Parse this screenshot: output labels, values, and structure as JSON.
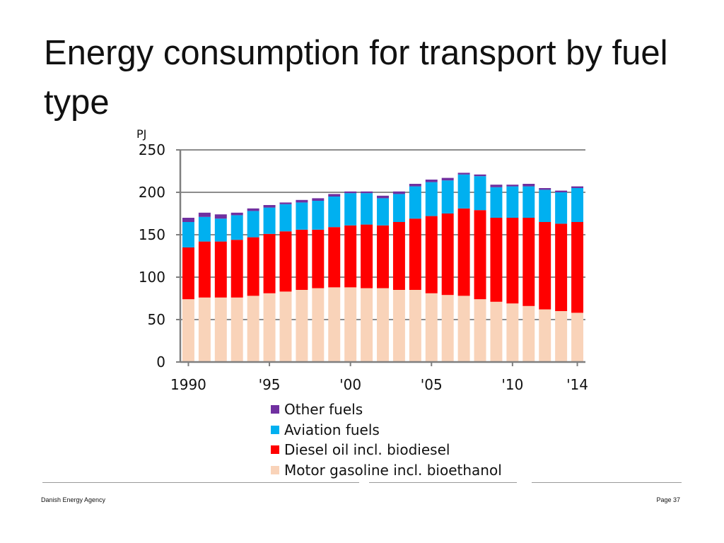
{
  "slide": {
    "title": "Energy consumption for transport by fuel type"
  },
  "footer": {
    "left": "Danish Energy Agency",
    "right": "Page 37"
  },
  "chart_data": {
    "type": "bar",
    "stacked": true,
    "title": "Energy consumption for transport by fuel type",
    "ylabel": "PJ",
    "xlabel": "",
    "ylim": [
      0,
      250
    ],
    "yticks": [
      0,
      50,
      100,
      150,
      200,
      250
    ],
    "grid": true,
    "categories": [
      "1990",
      "1991",
      "1992",
      "1993",
      "1994",
      "1995",
      "1996",
      "1997",
      "1998",
      "1999",
      "2000",
      "2001",
      "2002",
      "2003",
      "2004",
      "2005",
      "2006",
      "2007",
      "2008",
      "2009",
      "2010",
      "2011",
      "2012",
      "2013",
      "2014"
    ],
    "xtick_labels": [
      {
        "category": "1990",
        "label": "1990"
      },
      {
        "category": "1995",
        "label": "'95"
      },
      {
        "category": "2000",
        "label": "'00"
      },
      {
        "category": "2005",
        "label": "'05"
      },
      {
        "category": "2010",
        "label": "'10"
      },
      {
        "category": "2014",
        "label": "'14"
      }
    ],
    "series": [
      {
        "name": "Motor gasoline incl. bioethanol",
        "color": "#f9d3b9",
        "values": [
          74,
          76,
          76,
          76,
          78,
          81,
          83,
          85,
          87,
          88,
          88,
          87,
          87,
          85,
          85,
          81,
          79,
          78,
          74,
          71,
          69,
          66,
          62,
          60,
          58
        ]
      },
      {
        "name": "Diesel oil incl. biodiesel",
        "color": "#ff0000",
        "values": [
          61,
          66,
          66,
          68,
          69,
          70,
          71,
          71,
          69,
          71,
          73,
          75,
          74,
          80,
          84,
          91,
          96,
          103,
          105,
          99,
          101,
          104,
          103,
          103,
          107
        ]
      },
      {
        "name": "Aviation fuels",
        "color": "#00b0f0",
        "values": [
          30,
          29,
          27,
          29,
          31,
          31,
          32,
          32,
          34,
          36,
          38,
          37,
          32,
          33,
          38,
          40,
          39,
          40,
          40,
          36,
          37,
          37,
          38,
          37,
          40
        ]
      },
      {
        "name": "Other fuels",
        "color": "#7030a0",
        "values": [
          5,
          5,
          5,
          3,
          3,
          3,
          2,
          3,
          3,
          3,
          2,
          2,
          3,
          3,
          3,
          3,
          3,
          2,
          2,
          3,
          2,
          3,
          2,
          2,
          2
        ]
      }
    ],
    "legend": {
      "placement": "bottom",
      "order": [
        "Other fuels",
        "Aviation fuels",
        "Diesel oil incl. biodiesel",
        "Motor gasoline incl. bioethanol"
      ]
    },
    "colors": {
      "axis": "#7f7f7f",
      "grid": "#8c8c8c"
    }
  }
}
